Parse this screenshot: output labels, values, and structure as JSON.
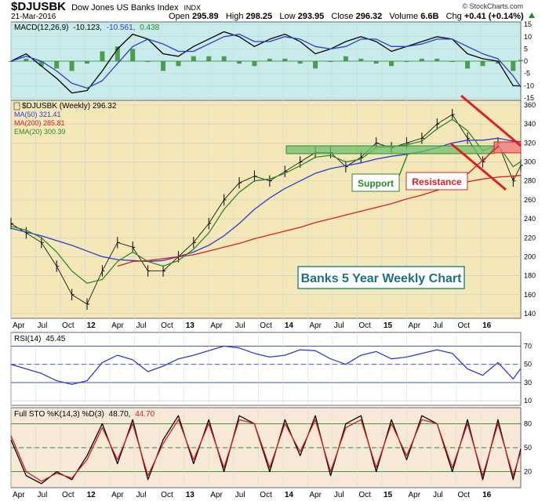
{
  "header": {
    "symbol": "$DJUSBK",
    "name": "Dow Jones US Banks Index",
    "exchange": "INDX",
    "date": "21-Mar-2016",
    "watermark": "© StockCharts.com",
    "quote": [
      {
        "label": "Open",
        "value": "295.89"
      },
      {
        "label": "High",
        "value": "298.25"
      },
      {
        "label": "Low",
        "value": "293.95"
      },
      {
        "label": "Close",
        "value": "296.32"
      },
      {
        "label": "Volume",
        "value": "6.6B"
      },
      {
        "label": "Chg",
        "value": "+0.41 (+0.14%)"
      }
    ],
    "change_direction": "up"
  },
  "chart_data": [
    {
      "id": "macd",
      "type": "line",
      "title": "MACD(12,26,9) -10.123, -10.561, 0.438",
      "legend": [
        "MACD(12,26,9)",
        "-10.123,",
        "-10.561,",
        "0.438"
      ],
      "ylim": [
        -16,
        16
      ],
      "yticks": [
        -15,
        -10,
        -5,
        0,
        5,
        10,
        15
      ],
      "x": [
        0,
        8,
        16,
        24,
        32,
        40,
        48,
        56,
        64,
        72,
        80,
        88,
        96,
        104,
        112,
        120,
        128,
        136,
        144,
        152,
        160,
        168,
        176,
        184,
        192,
        200,
        208,
        216,
        224,
        232,
        240,
        248,
        256,
        264,
        268
      ],
      "series": [
        {
          "name": "MACD",
          "color": "#000000",
          "values": [
            0,
            3,
            -2,
            -7,
            -13,
            -12,
            -4,
            5,
            11,
            9,
            3,
            2,
            6,
            9,
            12,
            10,
            6,
            9,
            11,
            8,
            3,
            5,
            8,
            10,
            8,
            4,
            6,
            8,
            10,
            9,
            3,
            1,
            0,
            -10,
            -10.1
          ]
        },
        {
          "name": "Signal",
          "color": "#2a3bd4",
          "values": [
            0,
            2,
            0,
            -4,
            -9,
            -11,
            -8,
            -1,
            6,
            9,
            7,
            4,
            4,
            7,
            10,
            11,
            8,
            8,
            10,
            9,
            6,
            5,
            6,
            9,
            9,
            6,
            6,
            7,
            9,
            9,
            6,
            3,
            1,
            -6,
            -10.6
          ]
        }
      ]
    },
    {
      "id": "price",
      "type": "line",
      "title": "Banks 5 Year Weekly Chart",
      "legend": [
        {
          "label": "$DJUSBK (Weekly) 296.32",
          "color": "#000000"
        },
        {
          "label": "MA(50) 321.41",
          "color": "#2a3bd4"
        },
        {
          "label": "MA(200) 285.81",
          "color": "#d42020"
        },
        {
          "label": "EMA(20) 300.39",
          "color": "#2a8a2a"
        }
      ],
      "ylim": [
        135,
        365
      ],
      "yticks": [
        140,
        160,
        180,
        200,
        220,
        240,
        260,
        280,
        300,
        320,
        340,
        360
      ],
      "x": [
        0,
        8,
        16,
        24,
        32,
        40,
        48,
        56,
        64,
        72,
        80,
        88,
        96,
        104,
        112,
        120,
        128,
        136,
        144,
        152,
        160,
        168,
        176,
        184,
        192,
        200,
        208,
        216,
        224,
        232,
        240,
        248,
        256,
        264,
        268
      ],
      "series": [
        {
          "name": "$DJUSBK",
          "color": "#000000",
          "values": [
            235,
            225,
            215,
            190,
            160,
            150,
            185,
            215,
            210,
            185,
            185,
            200,
            215,
            235,
            260,
            278,
            285,
            280,
            290,
            300,
            310,
            310,
            295,
            305,
            320,
            315,
            320,
            325,
            340,
            350,
            325,
            300,
            320,
            280,
            296.32
          ]
        },
        {
          "name": "MA(50)",
          "color": "#2a3bd4",
          "values": [
            230,
            226,
            222,
            217,
            212,
            206,
            200,
            197,
            196,
            195,
            196,
            200,
            205,
            212,
            222,
            235,
            250,
            262,
            272,
            280,
            288,
            293,
            296,
            299,
            303,
            306,
            308,
            311,
            315,
            320,
            323,
            323,
            325,
            322,
            321.41
          ]
        },
        {
          "name": "MA(200)",
          "color": "#d42020",
          "values": [
            null,
            null,
            null,
            null,
            null,
            null,
            null,
            190,
            195,
            196,
            198,
            200,
            202,
            206,
            210,
            214,
            219,
            223,
            227,
            231,
            236,
            240,
            244,
            248,
            252,
            256,
            261,
            265,
            270,
            275,
            279,
            282,
            284,
            285,
            285.81
          ]
        },
        {
          "name": "EMA(20)",
          "color": "#2a8a2a",
          "values": [
            232,
            228,
            220,
            205,
            185,
            172,
            176,
            195,
            205,
            195,
            190,
            196,
            208,
            225,
            250,
            268,
            280,
            282,
            288,
            296,
            305,
            307,
            300,
            303,
            315,
            316,
            318,
            322,
            335,
            345,
            333,
            312,
            318,
            295,
            300.39
          ]
        }
      ],
      "annotations": [
        {
          "text": "Support",
          "type": "box",
          "color": "#2a8a2a",
          "y": [
            290,
            298
          ]
        },
        {
          "text": "Resistance",
          "type": "box",
          "color": "#e02020",
          "y": [
            290,
            302
          ]
        }
      ]
    },
    {
      "id": "rsi",
      "type": "line",
      "title": "RSI(14) 45.45",
      "legend": [
        "RSI(14)",
        "45.45"
      ],
      "ylim": [
        5,
        85
      ],
      "yticks": [
        10,
        30,
        50,
        70
      ],
      "levels": [
        70,
        50,
        30
      ],
      "x": [
        0,
        8,
        16,
        24,
        32,
        40,
        48,
        56,
        64,
        72,
        80,
        88,
        96,
        104,
        112,
        120,
        128,
        136,
        144,
        152,
        160,
        168,
        176,
        184,
        192,
        200,
        208,
        216,
        224,
        232,
        240,
        248,
        256,
        264,
        268
      ],
      "series": [
        {
          "name": "RSI",
          "color": "#2a3bd4",
          "values": [
            50,
            45,
            40,
            32,
            28,
            32,
            52,
            60,
            55,
            42,
            48,
            56,
            60,
            65,
            70,
            68,
            62,
            58,
            60,
            66,
            65,
            56,
            50,
            60,
            64,
            56,
            58,
            62,
            66,
            62,
            45,
            38,
            52,
            34,
            45.45
          ]
        }
      ]
    },
    {
      "id": "sto",
      "type": "line",
      "title": "Full STO %K(14,3) %D(3) 48.70, 44.70",
      "legend": [
        {
          "label": "Full STO %K(14,3) %D(3)",
          "color": "#000000"
        },
        {
          "label": "48.70,",
          "color": "#000000"
        },
        {
          "label": "44.70",
          "color": "#d42020"
        }
      ],
      "ylim": [
        0,
        100
      ],
      "yticks": [
        20,
        50,
        80
      ],
      "levels": [
        80,
        50,
        20
      ],
      "x": [
        0,
        8,
        16,
        24,
        32,
        40,
        48,
        56,
        64,
        72,
        80,
        88,
        96,
        104,
        112,
        120,
        128,
        136,
        144,
        152,
        160,
        168,
        176,
        184,
        192,
        200,
        208,
        216,
        224,
        232,
        240,
        248,
        256,
        264,
        268
      ],
      "series": [
        {
          "name": "%K",
          "color": "#000000",
          "values": [
            60,
            15,
            5,
            20,
            10,
            40,
            80,
            30,
            85,
            10,
            60,
            90,
            30,
            85,
            20,
            90,
            80,
            20,
            85,
            40,
            90,
            15,
            80,
            90,
            20,
            85,
            35,
            90,
            80,
            20,
            85,
            10,
            85,
            10,
            48.7
          ]
        },
        {
          "name": "%D",
          "color": "#d42020",
          "values": [
            65,
            20,
            8,
            18,
            12,
            35,
            75,
            35,
            80,
            15,
            55,
            85,
            35,
            80,
            25,
            85,
            80,
            25,
            80,
            45,
            85,
            20,
            75,
            85,
            25,
            80,
            40,
            85,
            80,
            25,
            80,
            15,
            80,
            15,
            44.7
          ]
        }
      ]
    }
  ],
  "x_axis_labels": [
    {
      "text": "Apr",
      "x": 0
    },
    {
      "text": "Jul",
      "x": 13
    },
    {
      "text": "Oct",
      "x": 26
    },
    {
      "text": "12",
      "x": 39
    },
    {
      "text": "Apr",
      "x": 52
    },
    {
      "text": "Jul",
      "x": 65
    },
    {
      "text": "Oct",
      "x": 78
    },
    {
      "text": "13",
      "x": 91
    },
    {
      "text": "Apr",
      "x": 104
    },
    {
      "text": "Jul",
      "x": 117
    },
    {
      "text": "Oct",
      "x": 130
    },
    {
      "text": "14",
      "x": 143
    },
    {
      "text": "Apr",
      "x": 156
    },
    {
      "text": "Jul",
      "x": 169
    },
    {
      "text": "Oct",
      "x": 182
    },
    {
      "text": "15",
      "x": 195
    },
    {
      "text": "Apr",
      "x": 208
    },
    {
      "text": "Jul",
      "x": 221
    },
    {
      "text": "Oct",
      "x": 234
    },
    {
      "text": "16",
      "x": 247
    }
  ],
  "colors": {
    "panel_top": "#c8ecec",
    "panel_price": "#f5e8b8",
    "panel_rsi": "#ffffff",
    "panel_sto": "#f7e8d8",
    "price_ohlc": "#000000",
    "macd": "#000000",
    "signal": "#2a3bd4",
    "histogram": "#2a8a2a",
    "support": "#2a8a2a",
    "resistance": "#e02020"
  }
}
